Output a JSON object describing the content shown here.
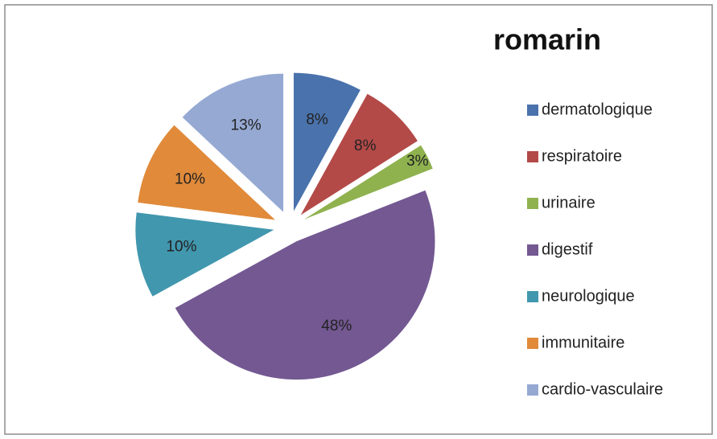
{
  "chart_data": {
    "type": "pie",
    "title": "romarin",
    "categories": [
      "dermatologique",
      "respiratoire",
      "urinaire",
      "digestif",
      "neurologique",
      "immunitaire",
      "cardio-vasculaire"
    ],
    "values": [
      8,
      8,
      3,
      48,
      10,
      10,
      13
    ],
    "value_labels": [
      "8%",
      "8%",
      "3%",
      "48%",
      "10%",
      "10%",
      "13%"
    ],
    "colors": [
      "#4a72ac",
      "#b34a48",
      "#8fb24f",
      "#735892",
      "#4197ae",
      "#e08a3a",
      "#95a9d3"
    ],
    "legend": "right"
  }
}
